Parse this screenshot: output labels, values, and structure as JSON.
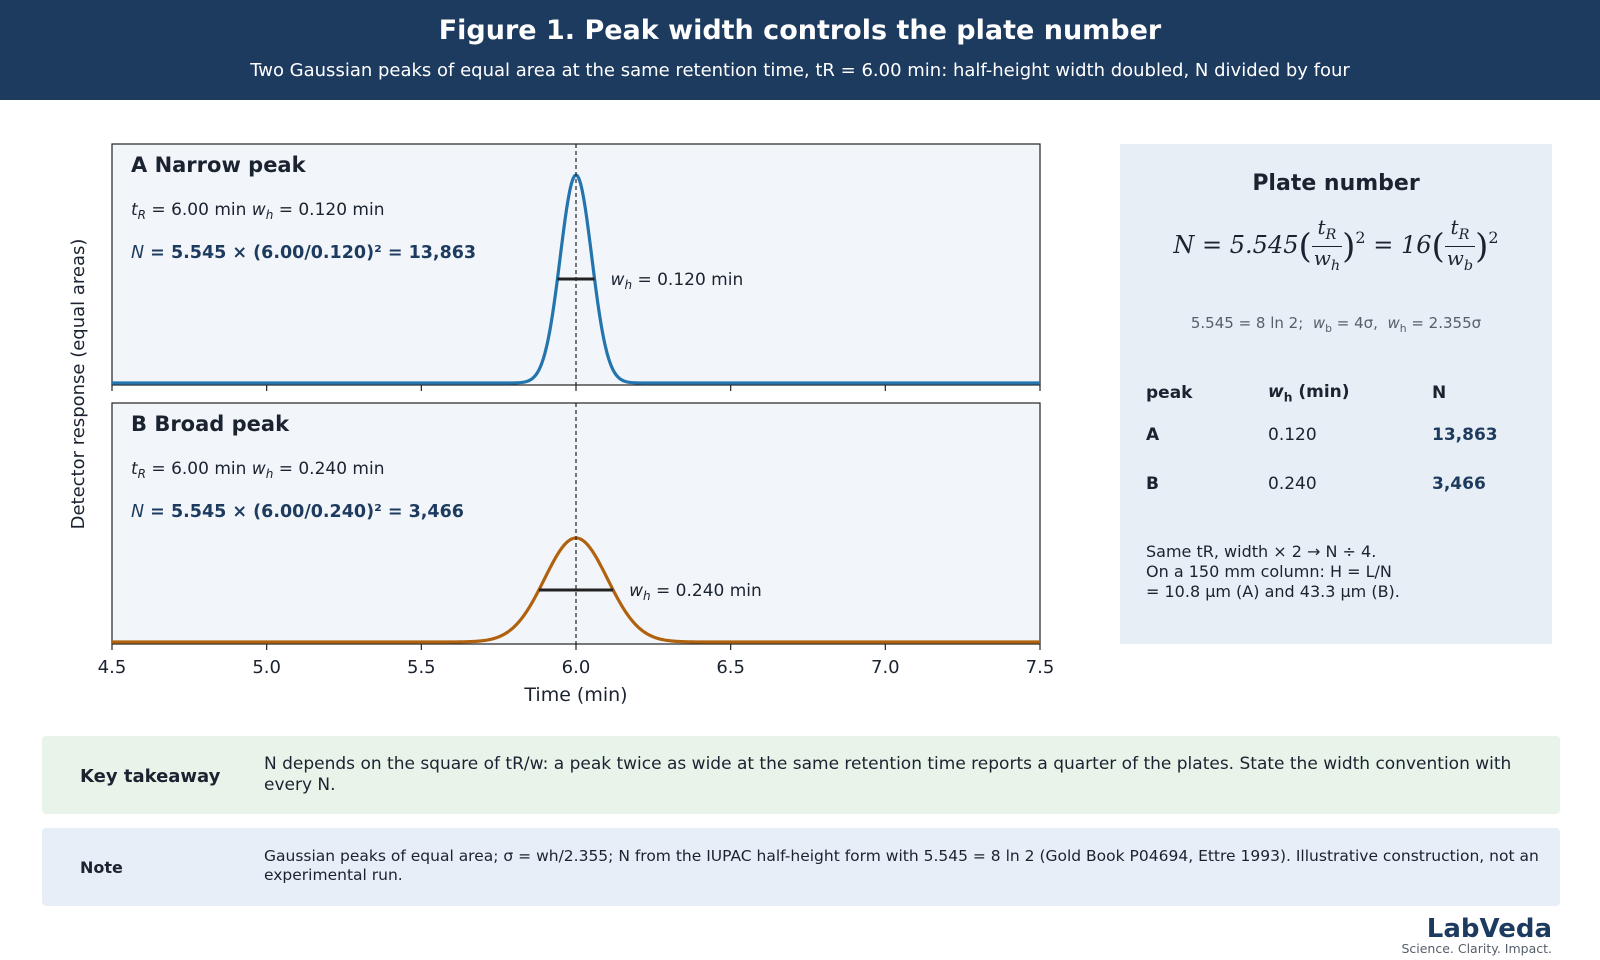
{
  "header": {
    "title": "Figure 1. Peak width controls the plate number",
    "subtitle": "Two Gaussian peaks of equal area at the same retention time, tR = 6.00 min: half-height width doubled, N divided by four"
  },
  "colors": {
    "header_bg": "#1d3a5f",
    "peak_a": "#2474ad",
    "peak_b": "#b0620f",
    "panel_bg": "#f2f6fb",
    "side_bg": "#e7eef6",
    "takeaway_bg": "#e8f3e9",
    "note_bg": "#e7eef7"
  },
  "chart_data": {
    "type": "line",
    "x_range": [
      4.5,
      7.5
    ],
    "xticks": [
      "4.5",
      "5.0",
      "5.5",
      "6.0",
      "6.5",
      "7.0",
      "7.5"
    ],
    "xlabel": "Time (min)",
    "ylabel": "Detector response (equal areas)",
    "retention_time": 6.0,
    "grid": false,
    "panels": [
      {
        "letter": "A",
        "title": "Narrow peak",
        "tR_text": "= 6.00 min",
        "wh_text": "= 0.120 min",
        "eq_text": "= 5.545 × (6.00/0.120)² = 13,863",
        "width_label": "= 0.120 min",
        "center": 6.0,
        "wh": 0.12,
        "relative_height": 1.0,
        "N": 13863
      },
      {
        "letter": "B",
        "title": "Broad peak",
        "tR_text": "= 6.00 min",
        "wh_text": "= 0.240 min",
        "eq_text": "= 5.545 × (6.00/0.240)² = 3,466",
        "width_label": "= 0.240 min",
        "center": 6.0,
        "wh": 0.24,
        "relative_height": 0.5,
        "N": 3466
      }
    ]
  },
  "side": {
    "title": "Plate number",
    "formula": {
      "lhs": "N = 5.545",
      "mid": "= 16",
      "sq": "2"
    },
    "relations": "5.545 = 8 ln 2;",
    "relation_wb": "= 4σ,",
    "relation_wh": "= 2.355σ",
    "table": {
      "headers": [
        "peak",
        "(min)",
        "N"
      ],
      "rows": [
        {
          "peak": "A",
          "wh": "0.120",
          "N": "13,863"
        },
        {
          "peak": "B",
          "wh": "0.240",
          "N": "3,466"
        }
      ]
    },
    "footer": "Same tR, width × 2 → N ÷ 4.\nOn a 150 mm column: H = L/N\n= 10.8 µm (A) and 43.3 µm (B)."
  },
  "takeaway": {
    "label": "Key takeaway",
    "text": "N depends on the square of tR/w: a peak twice as wide at the same retention time reports a quarter of the plates. State the width convention with every N."
  },
  "note": {
    "label": "Note",
    "text": "Gaussian peaks of equal area; σ = wh/2.355; N from the IUPAC half-height form with 5.545 = 8 ln 2 (Gold Book P04694, Ettre 1993). Illustrative construction, not an experimental run."
  },
  "brand": {
    "name": "LabVeda",
    "tagline": "Science. Clarity. Impact."
  }
}
